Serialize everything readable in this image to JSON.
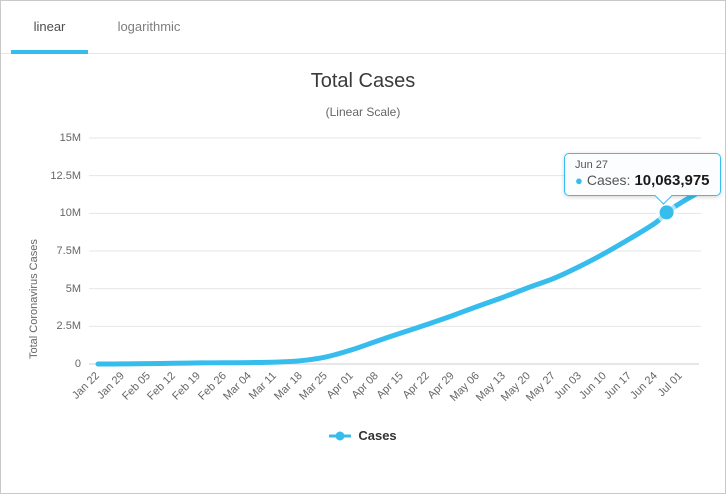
{
  "tabs": [
    {
      "label": "linear",
      "active": true
    },
    {
      "label": "logarithmic",
      "active": false
    }
  ],
  "header": {
    "title": "Total Cases",
    "subtitle": "(Linear Scale)"
  },
  "colors": {
    "accent": "#36bdee",
    "gridline": "#e6e6e6",
    "axis_line": "#cfcfcf"
  },
  "legend": {
    "label": "Cases"
  },
  "tooltip": {
    "date": "Jun 27",
    "series_label": "Cases:",
    "value": "10,063,975"
  },
  "chart_data": {
    "type": "line",
    "title": "Total Cases",
    "subtitle": "(Linear Scale)",
    "xlabel": "",
    "ylabel": "Total Coronavirus Cases",
    "ylim": [
      0,
      15000000
    ],
    "grid": "horizontal",
    "legend_position": "bottom",
    "yticks": [
      {
        "value": 0,
        "label": "0"
      },
      {
        "value": 2500000,
        "label": "2.5M"
      },
      {
        "value": 5000000,
        "label": "5M"
      },
      {
        "value": 7500000,
        "label": "7.5M"
      },
      {
        "value": 10000000,
        "label": "10M"
      },
      {
        "value": 12500000,
        "label": "12.5M"
      },
      {
        "value": 15000000,
        "label": "15M"
      }
    ],
    "categories": [
      "Jan 22",
      "Jan 29",
      "Feb 05",
      "Feb 12",
      "Feb 19",
      "Feb 26",
      "Mar 04",
      "Mar 11",
      "Mar 18",
      "Mar 25",
      "Apr 01",
      "Apr 08",
      "Apr 15",
      "Apr 22",
      "Apr 29",
      "May 06",
      "May 13",
      "May 20",
      "May 27",
      "Jun 03",
      "Jun 10",
      "Jun 17",
      "Jun 24",
      "Jul 01"
    ],
    "series": [
      {
        "name": "Cases",
        "color": "#36bdee",
        "values": [
          580,
          7818,
          28276,
          45134,
          75641,
          81394,
          95120,
          126214,
          218822,
          471035,
          935957,
          1518023,
          2083304,
          2637673,
          3220696,
          3845718,
          4442163,
          5085350,
          5691790,
          6478350,
          7360239,
          8339093,
          9377179,
          10712172
        ]
      }
    ],
    "highlight_point": {
      "category": "Jun 27",
      "x_index": 22.4286,
      "value": 10063975
    },
    "line_end_point": {
      "x_index": 23.8,
      "value": 11480000
    }
  }
}
